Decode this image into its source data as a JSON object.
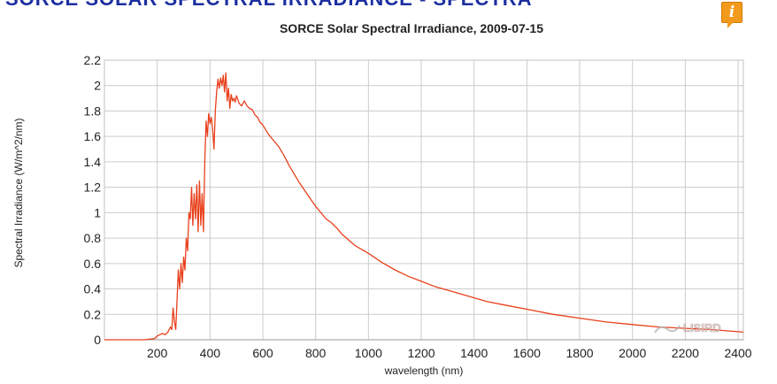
{
  "header": {
    "banner_title": "SORCE SOLAR SPECTRAL IRRADIANCE - SPECTRA",
    "info_icon": "info-icon",
    "info_label": "i"
  },
  "watermark": {
    "text": "LISIRD",
    "icon": "lisird-logo-icon"
  },
  "colors": {
    "series": "#e8401c",
    "grid": "#cccccc",
    "info": "#f29a1b",
    "banner": "#1c2fa0"
  },
  "chart_data": {
    "type": "line",
    "title": "SORCE Solar Spectral Irradiance, 2009-07-15",
    "xlabel": "wavelength (nm)",
    "ylabel": "Spectral Irradiance (W/m^2/nm)",
    "xlim": [
      0,
      2420
    ],
    "ylim": [
      0,
      2.2
    ],
    "grid": true,
    "legend": "none",
    "x_ticks": [
      200,
      400,
      600,
      800,
      1000,
      1200,
      1400,
      1600,
      1800,
      2000,
      2200,
      2400
    ],
    "y_ticks": [
      0,
      0.2,
      0.4,
      0.6,
      0.8,
      1,
      1.2,
      1.4,
      1.6,
      1.8,
      2,
      2.2
    ],
    "x_tick_labels": [
      "200",
      "400",
      "600",
      "800",
      "1000",
      "1200",
      "1400",
      "1600",
      "1800",
      "2000",
      "2200",
      "2400"
    ],
    "y_tick_labels": [
      "0",
      "0.2",
      "0.4",
      "0.6",
      "0.8",
      "1",
      "1.2",
      "1.4",
      "1.6",
      "1.8",
      "2",
      "2.2"
    ],
    "series": [
      {
        "x": [
          0,
          150,
          190,
          200,
          210,
          220,
          230,
          240,
          250,
          255,
          260,
          265,
          270,
          275,
          280,
          285,
          290,
          295,
          300,
          305,
          310,
          315,
          320,
          325,
          330,
          335,
          340,
          345,
          350,
          355,
          360,
          365,
          370,
          375,
          380,
          385,
          390,
          395,
          400,
          405,
          410,
          415,
          420,
          425,
          430,
          435,
          440,
          445,
          450,
          455,
          460,
          465,
          470,
          475,
          480,
          485,
          490,
          495,
          500,
          510,
          520,
          530,
          540,
          550,
          560,
          570,
          580,
          590,
          600,
          620,
          640,
          660,
          680,
          700,
          720,
          740,
          760,
          780,
          800,
          820,
          840,
          860,
          880,
          900,
          950,
          1000,
          1050,
          1100,
          1150,
          1200,
          1250,
          1300,
          1350,
          1400,
          1450,
          1500,
          1550,
          1600,
          1700,
          1800,
          1900,
          2000,
          2100,
          2200,
          2300,
          2420
        ],
        "y": [
          0,
          0,
          0.01,
          0.03,
          0.04,
          0.05,
          0.04,
          0.06,
          0.1,
          0.08,
          0.25,
          0.14,
          0.08,
          0.3,
          0.55,
          0.4,
          0.6,
          0.45,
          0.65,
          0.55,
          0.8,
          0.7,
          1.0,
          0.95,
          1.2,
          0.9,
          1.15,
          0.95,
          1.22,
          0.85,
          1.25,
          0.9,
          1.15,
          0.85,
          1.4,
          1.72,
          1.6,
          1.78,
          1.7,
          1.75,
          1.65,
          1.5,
          1.8,
          1.95,
          2.05,
          1.98,
          2.06,
          2.0,
          2.08,
          1.95,
          2.1,
          1.88,
          1.98,
          1.82,
          1.93,
          1.88,
          1.9,
          1.87,
          1.92,
          1.86,
          1.84,
          1.88,
          1.84,
          1.82,
          1.81,
          1.77,
          1.75,
          1.71,
          1.69,
          1.62,
          1.57,
          1.52,
          1.45,
          1.37,
          1.3,
          1.23,
          1.17,
          1.11,
          1.05,
          1.0,
          0.95,
          0.92,
          0.88,
          0.83,
          0.74,
          0.68,
          0.61,
          0.55,
          0.5,
          0.46,
          0.42,
          0.39,
          0.36,
          0.33,
          0.3,
          0.28,
          0.26,
          0.24,
          0.2,
          0.17,
          0.14,
          0.12,
          0.1,
          0.09,
          0.08,
          0.06
        ]
      }
    ]
  }
}
